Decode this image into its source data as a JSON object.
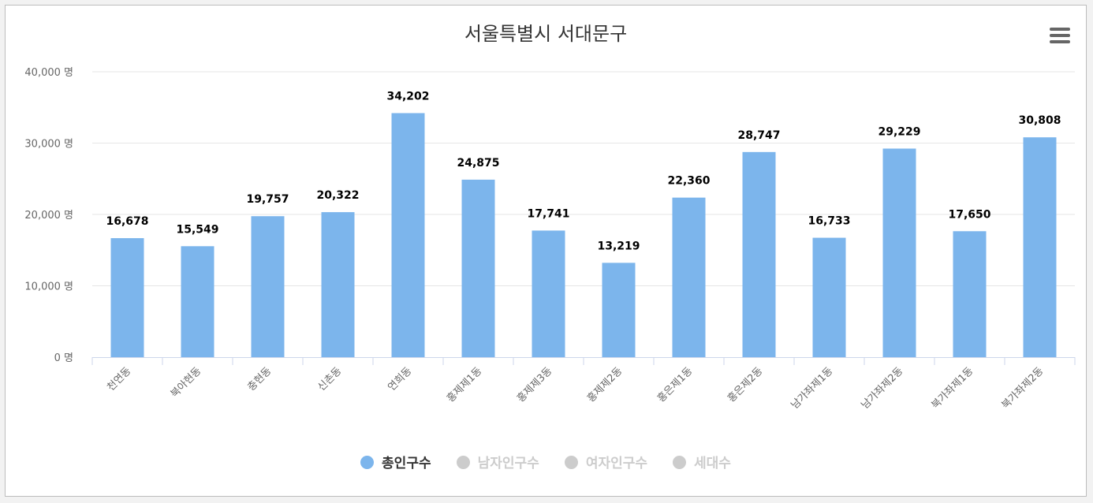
{
  "chart_data": {
    "type": "bar",
    "title": "서울특별시 서대문구",
    "categories": [
      "천연동",
      "북아현동",
      "충현동",
      "신촌동",
      "연희동",
      "홍제제1동",
      "홍제제3동",
      "홍제제2동",
      "홍은제1동",
      "홍은제2동",
      "남가좌제1동",
      "남가좌제2동",
      "북가좌제1동",
      "북가좌제2동"
    ],
    "series": [
      {
        "name": "총인구수",
        "values": [
          16678,
          15549,
          19757,
          20322,
          34202,
          24875,
          17741,
          13219,
          22360,
          28747,
          16733,
          29229,
          17650,
          30808
        ],
        "color": "#7cb5ec",
        "visible": true
      }
    ],
    "data_labels": [
      "16,678",
      "15,549",
      "19,757",
      "20,322",
      "34,202",
      "24,875",
      "17,741",
      "13,219",
      "22,360",
      "28,747",
      "16,733",
      "29,229",
      "17,650",
      "30,808"
    ],
    "y_ticks": [
      {
        "value": 0,
        "label": "0 명"
      },
      {
        "value": 10000,
        "label": "10,000 명"
      },
      {
        "value": 20000,
        "label": "20,000 명"
      },
      {
        "value": 30000,
        "label": "30,000 명"
      },
      {
        "value": 40000,
        "label": "40,000 명"
      }
    ],
    "ylim": [
      0,
      40000
    ],
    "grid": true,
    "xlabel": "",
    "ylabel": "",
    "legend_position": "bottom"
  },
  "legend": [
    {
      "label": "총인구수",
      "color": "#7cb5ec",
      "text_color": "#333333",
      "active": true
    },
    {
      "label": "남자인구수",
      "color": "#cccccc",
      "text_color": "#cccccc",
      "active": false
    },
    {
      "label": "여자인구수",
      "color": "#cccccc",
      "text_color": "#cccccc",
      "active": false
    },
    {
      "label": "세대수",
      "color": "#cccccc",
      "text_color": "#cccccc",
      "active": false
    }
  ],
  "menu": {
    "icon": "hamburger-menu-icon"
  },
  "colors": {
    "grid": "#e6e6e6",
    "axis": "#ccd6eb",
    "bar": "#7cb5ec"
  }
}
